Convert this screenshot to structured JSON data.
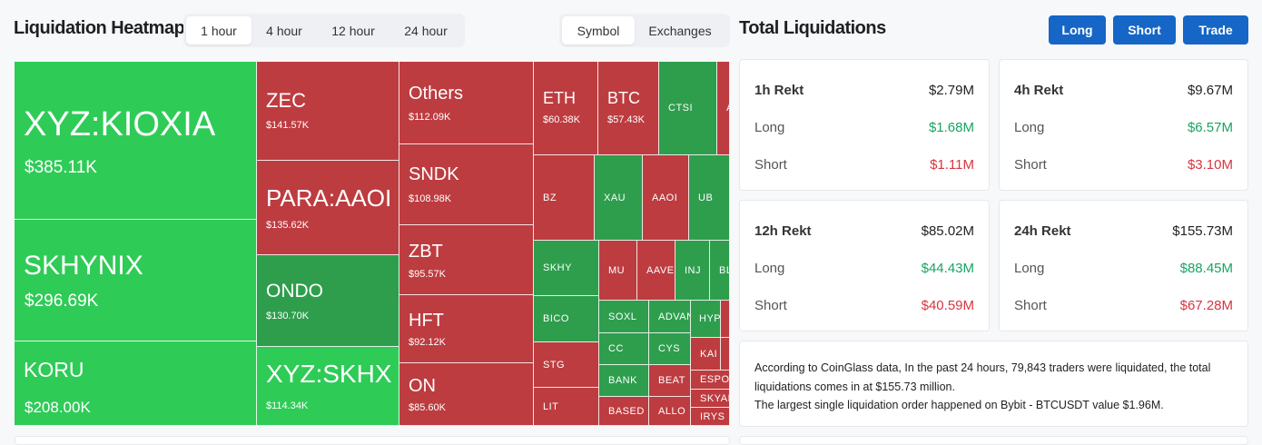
{
  "heatmap": {
    "title": "Liquidation Heatmap",
    "timeframes": [
      "1 hour",
      "4 hour",
      "12 hour",
      "24 hour"
    ],
    "active_timeframe": "1 hour",
    "views": [
      "Symbol",
      "Exchanges"
    ],
    "active_view": "Symbol",
    "tiles": [
      {
        "symbol": "XYZ:KIOXIA",
        "value": "$385.11K",
        "side": "long"
      },
      {
        "symbol": "SKHYNIX",
        "value": "$296.69K",
        "side": "long"
      },
      {
        "symbol": "KORU",
        "value": "$208.00K",
        "side": "long"
      },
      {
        "symbol": "ZEC",
        "value": "$141.57K",
        "side": "short"
      },
      {
        "symbol": "PARA:AAOI",
        "value": "$135.62K",
        "side": "short"
      },
      {
        "symbol": "ONDO",
        "value": "$130.70K",
        "side": "long"
      },
      {
        "symbol": "XYZ:SKHX",
        "value": "$114.34K",
        "side": "long"
      },
      {
        "symbol": "Others",
        "value": "$112.09K",
        "side": "short"
      },
      {
        "symbol": "SNDK",
        "value": "$108.98K",
        "side": "short"
      },
      {
        "symbol": "ZBT",
        "value": "$95.57K",
        "side": "short"
      },
      {
        "symbol": "HFT",
        "value": "$92.12K",
        "side": "short"
      },
      {
        "symbol": "ON",
        "value": "$85.60K",
        "side": "short"
      },
      {
        "symbol": "ETH",
        "value": "$60.38K",
        "side": "short"
      },
      {
        "symbol": "BTC",
        "value": "$57.43K",
        "side": "short"
      },
      {
        "symbol": "CTSI",
        "side": "long"
      },
      {
        "symbol": "A",
        "side": "short"
      },
      {
        "symbol": "BZ",
        "side": "short"
      },
      {
        "symbol": "XAU",
        "side": "long"
      },
      {
        "symbol": "AAOI",
        "side": "short"
      },
      {
        "symbol": "UB",
        "side": "long"
      },
      {
        "symbol": "SKHY",
        "side": "long"
      },
      {
        "symbol": "MU",
        "side": "short"
      },
      {
        "symbol": "AAVE",
        "side": "short"
      },
      {
        "symbol": "INJ",
        "side": "long"
      },
      {
        "symbol": "BL",
        "side": "long"
      },
      {
        "symbol": "BICO",
        "side": "long"
      },
      {
        "symbol": "SOXL",
        "side": "long"
      },
      {
        "symbol": "ADVAN",
        "side": "long"
      },
      {
        "symbol": "HYP",
        "side": "long"
      },
      {
        "symbol": "STG",
        "side": "short"
      },
      {
        "symbol": "CC",
        "side": "long"
      },
      {
        "symbol": "CYS",
        "side": "long"
      },
      {
        "symbol": "KAI",
        "side": "short"
      },
      {
        "symbol": "BANK",
        "side": "long"
      },
      {
        "symbol": "BEAT",
        "side": "short"
      },
      {
        "symbol": "ESPO",
        "side": "short"
      },
      {
        "symbol": "SKYAI",
        "side": "short"
      },
      {
        "symbol": "LIT",
        "side": "short"
      },
      {
        "symbol": "BASED",
        "side": "short"
      },
      {
        "symbol": "ALLO",
        "side": "short"
      },
      {
        "symbol": "IRYS",
        "side": "short"
      }
    ]
  },
  "totals": {
    "title": "Total Liquidations",
    "buttons": {
      "long": "Long",
      "short": "Short",
      "trade": "Trade"
    },
    "cards": [
      {
        "title": "1h Rekt",
        "total": "$2.79M",
        "long_label": "Long",
        "long": "$1.68M",
        "short_label": "Short",
        "short": "$1.11M"
      },
      {
        "title": "4h Rekt",
        "total": "$9.67M",
        "long_label": "Long",
        "long": "$6.57M",
        "short_label": "Short",
        "short": "$3.10M"
      },
      {
        "title": "12h Rekt",
        "total": "$85.02M",
        "long_label": "Long",
        "long": "$44.43M",
        "short_label": "Short",
        "short": "$40.59M"
      },
      {
        "title": "24h Rekt",
        "total": "$155.73M",
        "long_label": "Long",
        "long": "$88.45M",
        "short_label": "Short",
        "short": "$67.28M"
      }
    ],
    "summary_line1": "According to CoinGlass data, In the past 24 hours, 79,843 traders were liquidated, the total liquidations comes in at $155.73 million.",
    "summary_line2": "The largest single liquidation order happened on Bybit - BTCUSDT value $1.96M."
  },
  "colors": {
    "long": "#2fcb57",
    "long_dark": "#2e9e4d",
    "short": "#bd3c40",
    "accent": "#1566c6",
    "positive": "#19a463",
    "negative": "#d9343e"
  }
}
